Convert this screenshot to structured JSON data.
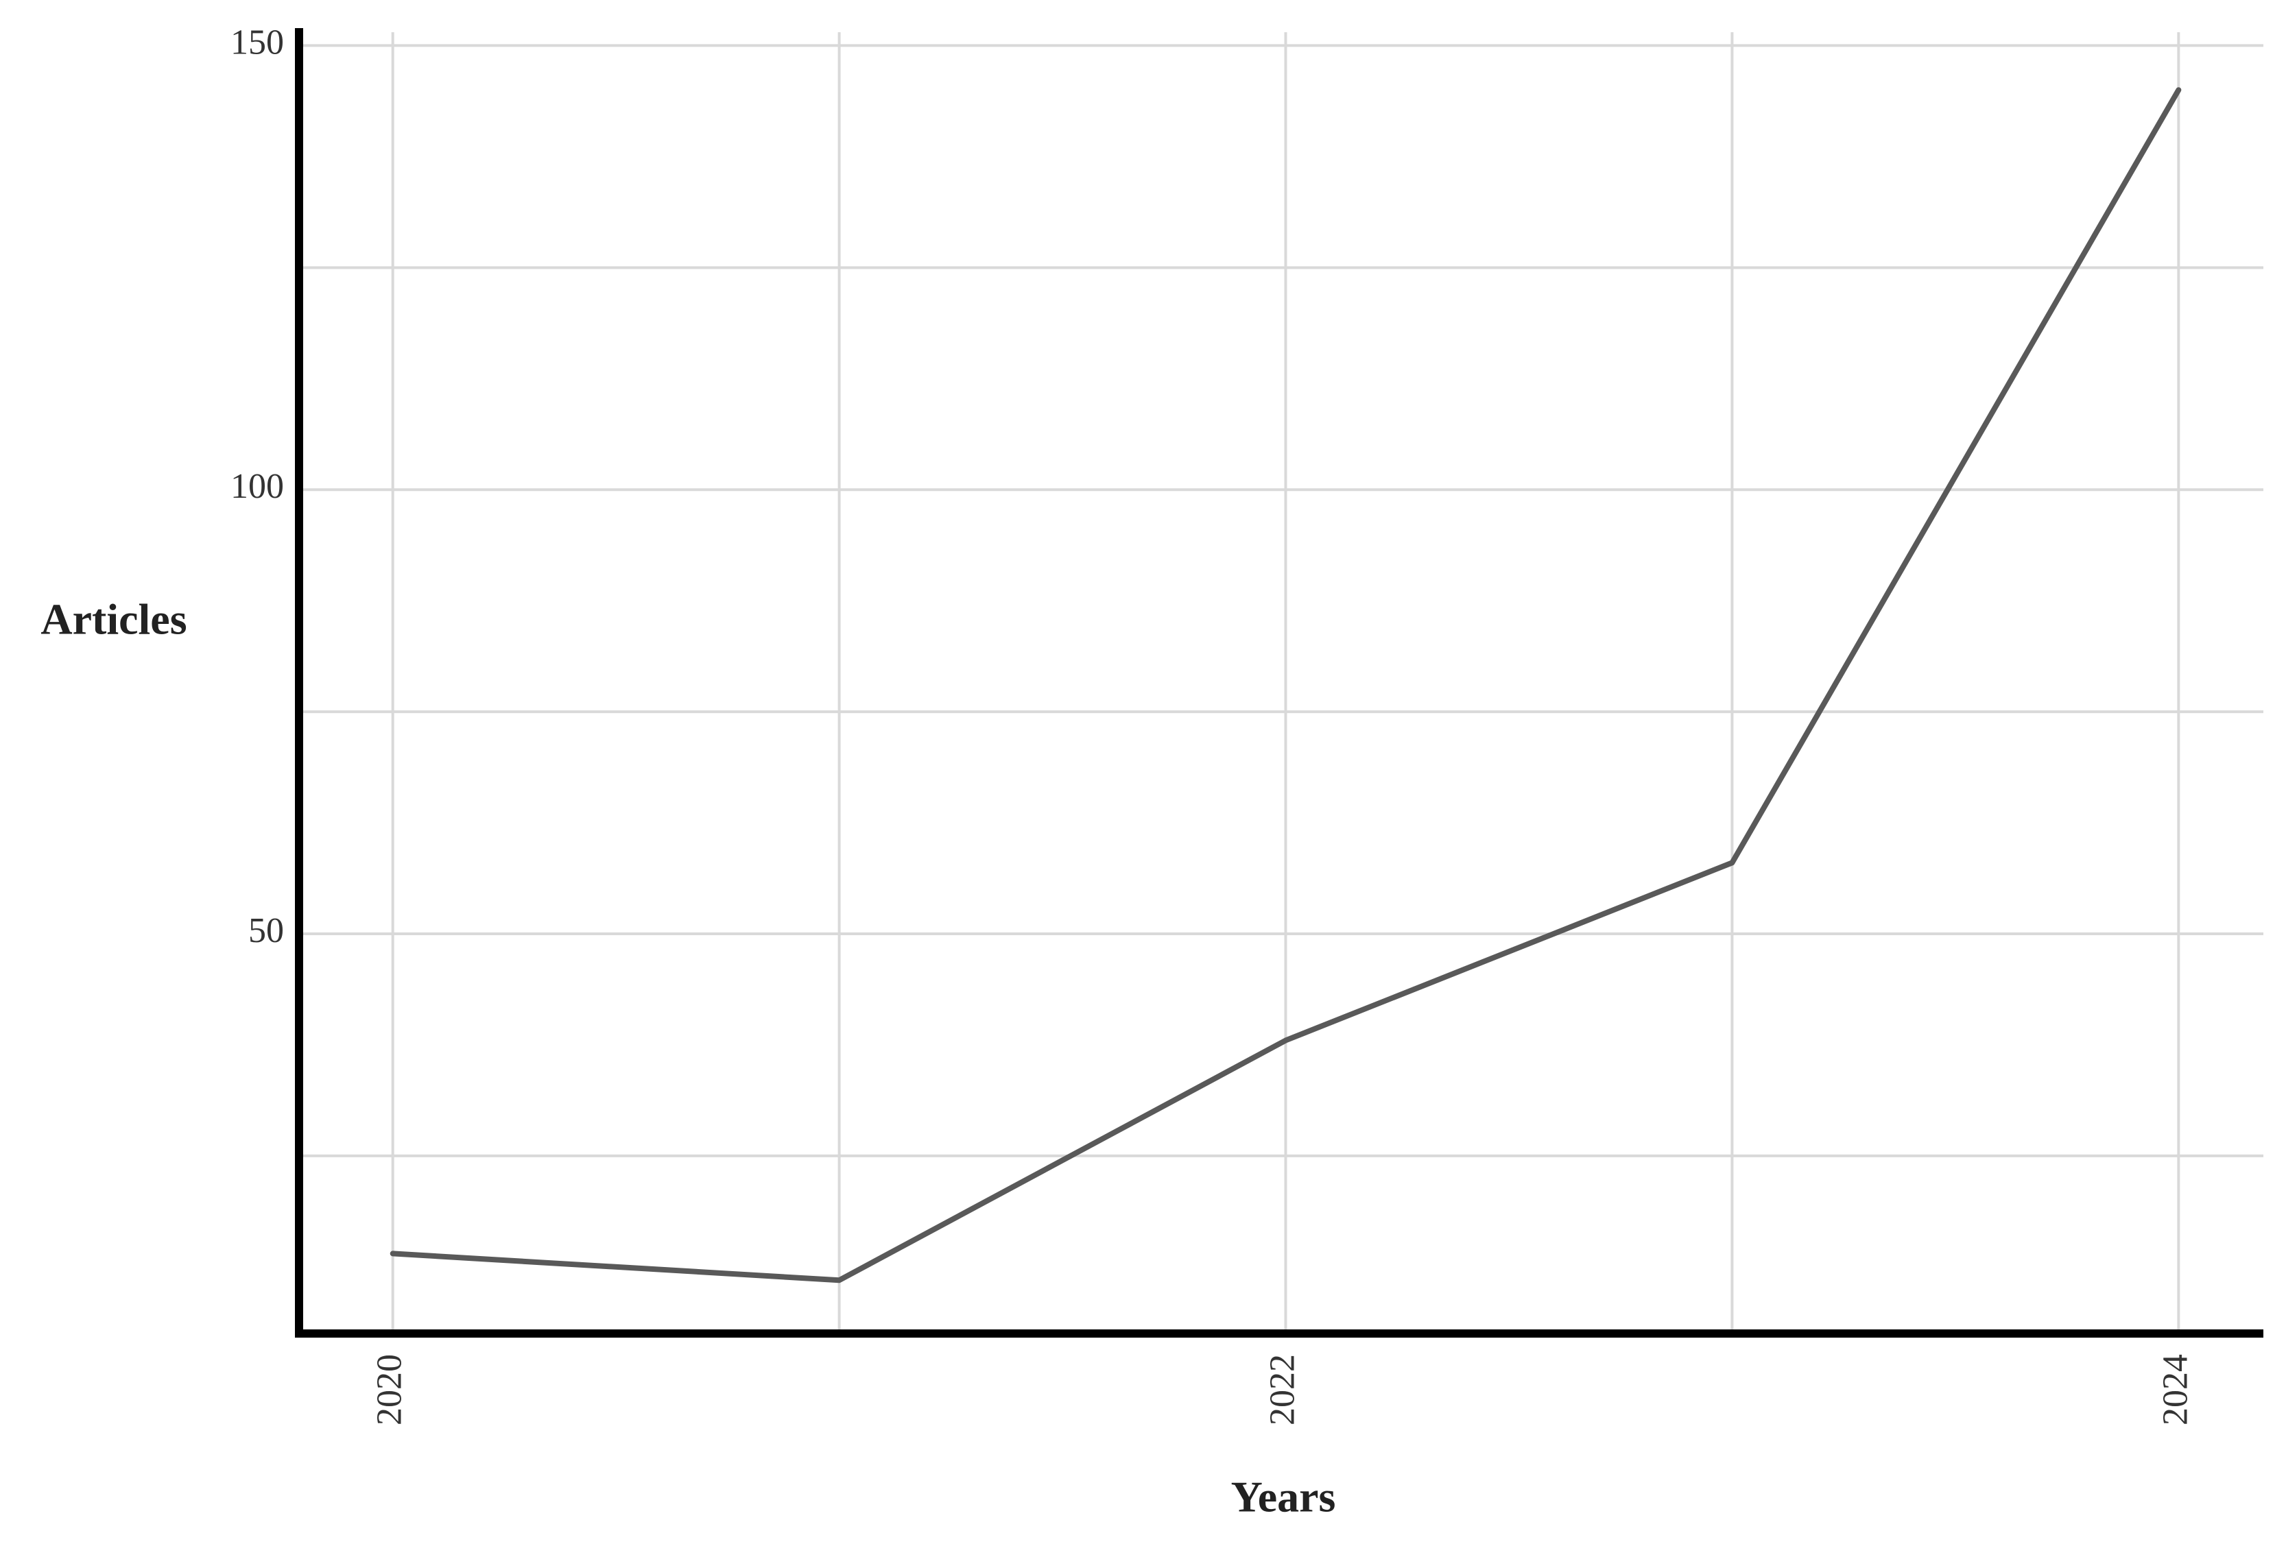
{
  "chart_data": {
    "type": "line",
    "x_label": "Years",
    "y_label": "Articles",
    "x": [
      2020,
      2021,
      2022,
      2023,
      2024
    ],
    "series": [
      {
        "name": "Articles",
        "color": "#595959",
        "values": [
          14,
          11,
          38,
          58,
          145
        ]
      }
    ],
    "xlim": [
      2019.79,
      2024.19
    ],
    "xticks": [
      2020,
      2022,
      2024
    ],
    "xminor_ticks": [
      2021,
      2023
    ],
    "ylim": [
      5,
      151.5
    ],
    "yticks": [
      50,
      100,
      150
    ],
    "yminor_ticks": [
      25,
      75,
      125
    ],
    "grid": true
  }
}
